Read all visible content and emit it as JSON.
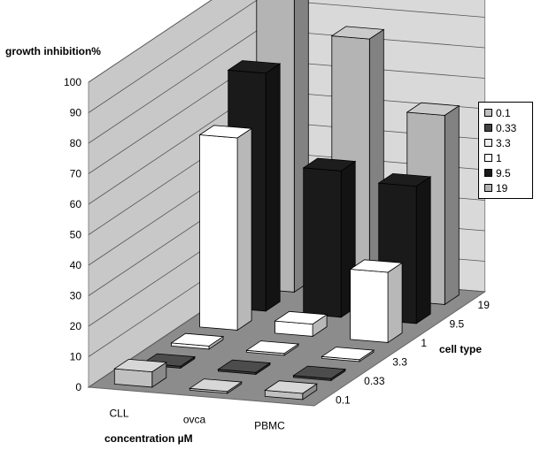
{
  "chart_data": {
    "type": "bar",
    "subtype": "3d-column",
    "ylabel": "growth inhibition%",
    "xlabel": "concentration µM",
    "zlabel": "cell type",
    "ylim": [
      0,
      100
    ],
    "yticks": [
      "0",
      "10",
      "20",
      "30",
      "40",
      "50",
      "60",
      "70",
      "80",
      "90",
      "100"
    ],
    "categories": [
      "CLL",
      "ovca",
      "PBMC"
    ],
    "series": [
      {
        "name": "0.1",
        "color": "#c0c0c0",
        "values": [
          5,
          0,
          2
        ]
      },
      {
        "name": "0.33",
        "color": "#444444",
        "values": [
          0,
          0,
          0
        ]
      },
      {
        "name": "3.3",
        "color": "#f0f0f0",
        "values": [
          1,
          0,
          0
        ]
      },
      {
        "name": "1",
        "color": "#ffffff",
        "values": [
          63,
          4,
          23
        ]
      },
      {
        "name": "9.5",
        "color": "#1a1a1a",
        "values": [
          78,
          48,
          45
        ]
      },
      {
        "name": "19",
        "color": "#b4b4b4",
        "values": [
          96,
          85,
          62
        ]
      }
    ],
    "legend_position": "right",
    "grid": true
  }
}
